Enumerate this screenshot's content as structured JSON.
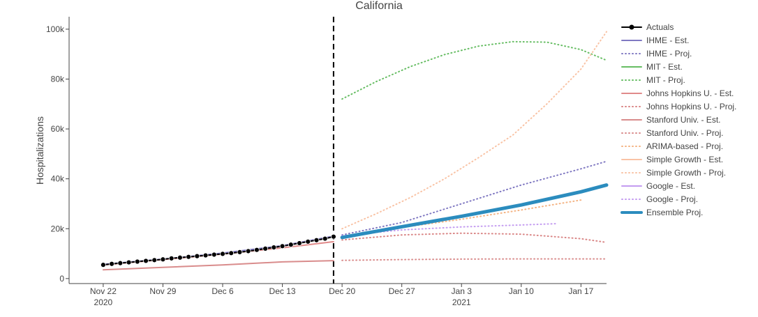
{
  "chart_data": {
    "type": "line",
    "title": "California",
    "ylabel": "Hospitalizations",
    "xlabel": "",
    "x_tick_labels": [
      {
        "date": "2020-11-22",
        "line1": "Nov 22",
        "line2": "2020"
      },
      {
        "date": "2020-11-29",
        "line1": "Nov 29",
        "line2": ""
      },
      {
        "date": "2020-12-06",
        "line1": "Dec 6",
        "line2": ""
      },
      {
        "date": "2020-12-13",
        "line1": "Dec 13",
        "line2": ""
      },
      {
        "date": "2020-12-20",
        "line1": "Dec 20",
        "line2": ""
      },
      {
        "date": "2020-12-27",
        "line1": "Dec 27",
        "line2": ""
      },
      {
        "date": "2021-01-03",
        "line1": "Jan 3",
        "line2": "2021"
      },
      {
        "date": "2021-01-10",
        "line1": "Jan 10",
        "line2": ""
      },
      {
        "date": "2021-01-17",
        "line1": "Jan 17",
        "line2": ""
      }
    ],
    "y_ticks": [
      {
        "value": 0,
        "label": "0"
      },
      {
        "value": 20000,
        "label": "20k"
      },
      {
        "value": 40000,
        "label": "40k"
      },
      {
        "value": 60000,
        "label": "60k"
      },
      {
        "value": 80000,
        "label": "80k"
      },
      {
        "value": 100000,
        "label": "100k"
      }
    ],
    "xlim": [
      "2020-11-18",
      "2021-01-20"
    ],
    "ylim": [
      -2000,
      105000
    ],
    "grid": false,
    "legend_position": "right",
    "divider_date": "2020-12-19",
    "series": [
      {
        "name": "Actuals",
        "color": "#000000",
        "dash": "solid",
        "width": 2,
        "markers": true,
        "x": [
          "2020-11-22",
          "2020-11-23",
          "2020-11-24",
          "2020-11-25",
          "2020-11-26",
          "2020-11-27",
          "2020-11-28",
          "2020-11-29",
          "2020-11-30",
          "2020-12-01",
          "2020-12-02",
          "2020-12-03",
          "2020-12-04",
          "2020-12-05",
          "2020-12-06",
          "2020-12-07",
          "2020-12-08",
          "2020-12-09",
          "2020-12-10",
          "2020-12-11",
          "2020-12-12",
          "2020-12-13",
          "2020-12-14",
          "2020-12-15",
          "2020-12-16",
          "2020-12-17",
          "2020-12-18",
          "2020-12-19"
        ],
        "y": [
          5500,
          5900,
          6200,
          6500,
          6800,
          7100,
          7400,
          7700,
          8100,
          8400,
          8700,
          9000,
          9300,
          9600,
          9900,
          10200,
          10600,
          11000,
          11500,
          12000,
          12500,
          13000,
          13600,
          14200,
          14800,
          15400,
          16000,
          16800
        ]
      },
      {
        "name": "IHME - Est.",
        "color": "#8079c2",
        "dash": "solid",
        "width": 2,
        "x": [
          "2020-11-22",
          "2020-11-29",
          "2020-12-06",
          "2020-12-13",
          "2020-12-19"
        ],
        "y": [
          5700,
          7800,
          10200,
          13200,
          17000
        ]
      },
      {
        "name": "IHME - Proj.",
        "color": "#8079c2",
        "dash": "dot",
        "width": 2,
        "x": [
          "2020-12-20",
          "2020-12-27",
          "2021-01-03",
          "2021-01-10",
          "2021-01-17",
          "2021-01-20"
        ],
        "y": [
          17500,
          22500,
          30000,
          37500,
          44000,
          47000
        ]
      },
      {
        "name": "MIT - Est.",
        "color": "#66bd63",
        "dash": "solid",
        "width": 2,
        "x": [],
        "y": []
      },
      {
        "name": "MIT - Proj.",
        "color": "#66bd63",
        "dash": "dot",
        "width": 2,
        "x": [
          "2020-12-20",
          "2020-12-24",
          "2020-12-28",
          "2021-01-01",
          "2021-01-05",
          "2021-01-09",
          "2021-01-13",
          "2021-01-17",
          "2021-01-20"
        ],
        "y": [
          72000,
          79000,
          85000,
          89800,
          93200,
          95000,
          94800,
          91800,
          87500
        ]
      },
      {
        "name": "Johns Hopkins U. - Est.",
        "color": "#e08a8a",
        "dash": "solid",
        "width": 2,
        "x": [
          "2020-11-22",
          "2020-11-29",
          "2020-12-06",
          "2020-12-13",
          "2020-12-19"
        ],
        "y": [
          5500,
          7600,
          9800,
          12300,
          14800
        ]
      },
      {
        "name": "Johns Hopkins U. - Proj.",
        "color": "#d98585",
        "dash": "dot",
        "width": 2,
        "x": [
          "2020-12-20",
          "2020-12-27",
          "2021-01-03",
          "2021-01-10",
          "2021-01-17",
          "2021-01-20"
        ],
        "y": [
          15500,
          17500,
          18200,
          17800,
          16000,
          14500
        ]
      },
      {
        "name": "Stanford Univ. - Est.",
        "color": "#d98c8c",
        "dash": "solid",
        "width": 2,
        "x": [
          "2020-11-22",
          "2020-11-29",
          "2020-12-06",
          "2020-12-13",
          "2020-12-19"
        ],
        "y": [
          3500,
          4500,
          5500,
          6700,
          7200
        ]
      },
      {
        "name": "Stanford Univ. - Proj.",
        "color": "#d98c8c",
        "dash": "dot",
        "width": 2,
        "x": [
          "2020-12-20",
          "2020-12-27",
          "2021-01-03",
          "2021-01-10",
          "2021-01-17",
          "2021-01-20"
        ],
        "y": [
          7300,
          7600,
          7800,
          7900,
          7900,
          7900
        ]
      },
      {
        "name": "ARIMA-based - Proj.",
        "color": "#f4b383",
        "dash": "dot",
        "width": 2,
        "x": [
          "2020-12-20",
          "2020-12-27",
          "2021-01-03",
          "2021-01-10",
          "2021-01-17"
        ],
        "y": [
          17000,
          20500,
          23800,
          27500,
          31500
        ]
      },
      {
        "name": "Simple Growth - Est.",
        "color": "#f9c3a5",
        "dash": "solid",
        "width": 2,
        "x": [],
        "y": []
      },
      {
        "name": "Simple Growth - Proj.",
        "color": "#f9c3a5",
        "dash": "dot",
        "width": 2,
        "x": [
          "2020-12-20",
          "2020-12-24",
          "2020-12-28",
          "2021-01-01",
          "2021-01-05",
          "2021-01-09",
          "2021-01-13",
          "2021-01-17",
          "2021-01-20"
        ],
        "y": [
          20000,
          26000,
          32500,
          40000,
          48500,
          57500,
          70000,
          84000,
          99000
        ]
      },
      {
        "name": "Google - Est.",
        "color": "#c39bf0",
        "dash": "solid",
        "width": 2,
        "x": [],
        "y": []
      },
      {
        "name": "Google - Proj.",
        "color": "#c39bf0",
        "dash": "dot",
        "width": 2,
        "x": [
          "2020-12-20",
          "2020-12-27",
          "2021-01-03",
          "2021-01-10",
          "2021-01-14"
        ],
        "y": [
          17200,
          19500,
          20700,
          21500,
          22000
        ]
      },
      {
        "name": "Ensemble Proj.",
        "color": "#2b8cbe",
        "dash": "solid",
        "width": 5,
        "x": [
          "2020-12-20",
          "2020-12-27",
          "2021-01-03",
          "2021-01-10",
          "2021-01-17",
          "2021-01-20"
        ],
        "y": [
          16500,
          20800,
          25000,
          29500,
          34800,
          37500
        ]
      }
    ]
  }
}
